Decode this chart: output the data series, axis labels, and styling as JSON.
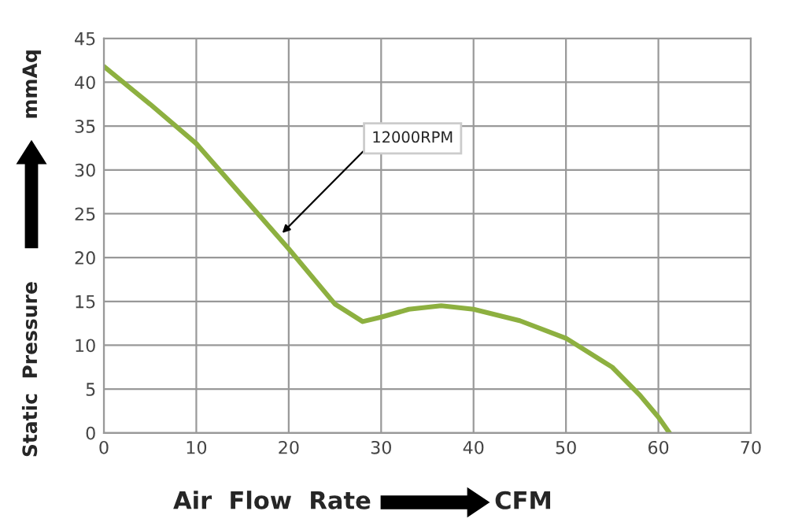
{
  "chart_data": {
    "type": "line",
    "xlabel": "Air  Flow  Rate",
    "ylabel": "Static  Pressure",
    "x": [
      0,
      5,
      10,
      15,
      20,
      25,
      28,
      30,
      33,
      36.5,
      40,
      45,
      50,
      55,
      58,
      60,
      61.2
    ],
    "series": [
      {
        "color": "#8db040",
        "values": [
          41.8,
          37.5,
          33,
          27,
          21,
          14.7,
          12.7,
          13.2,
          14.1,
          14.5,
          14.1,
          12.8,
          10.8,
          7.5,
          4.3,
          1.8,
          0
        ]
      }
    ],
    "xlim": [
      0,
      70
    ],
    "xticks": [
      0,
      10,
      20,
      30,
      40,
      50,
      60,
      70
    ],
    "ylim": [
      0,
      45
    ],
    "yticks": [
      0,
      5,
      10,
      15,
      20,
      25,
      30,
      35,
      40,
      45
    ],
    "grid": true,
    "marker": "none",
    "line_style": "solid",
    "legend": false,
    "annotations": [
      {
        "text": "12000RPM",
        "x": 19.3,
        "y": 22.8
      },
      "CFM",
      "mmAq"
    ]
  }
}
